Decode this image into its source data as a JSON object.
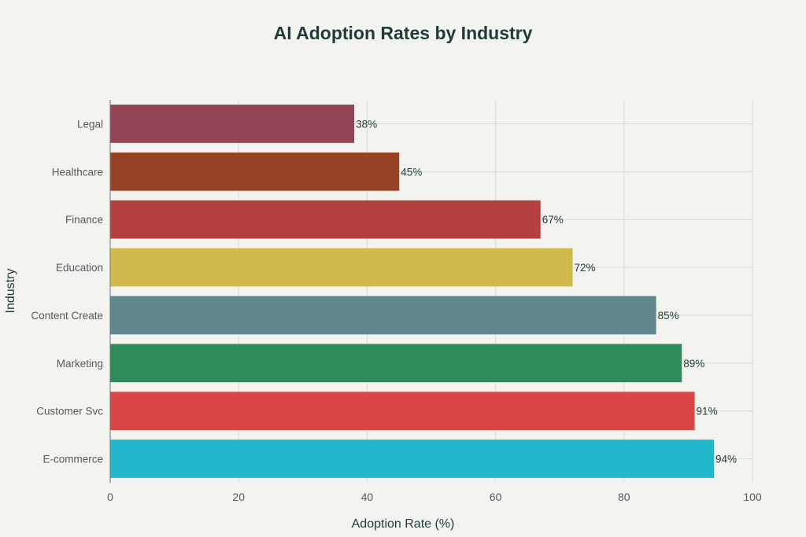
{
  "chart_data": {
    "type": "bar",
    "orientation": "horizontal",
    "title": "AI Adoption Rates by Industry",
    "xlabel": "Adoption Rate (%)",
    "ylabel": "Industry",
    "xlim": [
      0,
      100
    ],
    "xticks": [
      0,
      20,
      40,
      60,
      80,
      100
    ],
    "grid": true,
    "categories": [
      "Legal",
      "Healthcare",
      "Finance",
      "Education",
      "Content Create",
      "Marketing",
      "Customer Svc",
      "E-commerce"
    ],
    "values": [
      38,
      45,
      67,
      72,
      85,
      89,
      91,
      94
    ],
    "data_labels": [
      "38%",
      "45%",
      "67%",
      "72%",
      "85%",
      "89%",
      "91%",
      "94%"
    ],
    "colors": [
      "#944454",
      "#964325",
      "#b44040",
      "#d2b94b",
      "#5e868c",
      "#2f8b59",
      "#db4545",
      "#21b8cd"
    ]
  }
}
